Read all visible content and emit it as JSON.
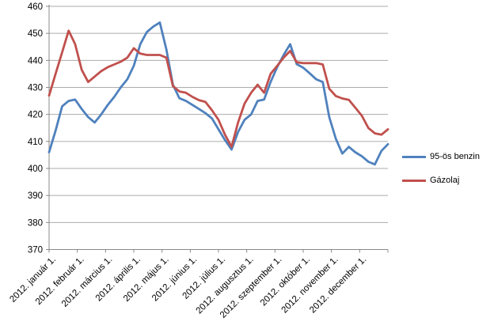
{
  "chart_data": {
    "type": "line",
    "title": "",
    "xlabel": "",
    "ylabel": "",
    "ylim": [
      370,
      460
    ],
    "y_tick_step": 10,
    "y_tick_labels": [
      "370",
      "380",
      "390",
      "400",
      "410",
      "420",
      "430",
      "440",
      "450",
      "460"
    ],
    "grid": "horizontal",
    "legend_position": "right",
    "x_axis_labels": [
      "2012. január 1.",
      "2012. február 1.",
      "2012. március 1.",
      "2012. április 1.",
      "2012. május 1.",
      "2012. június 1.",
      "2012. július 1.",
      "2012. augusztus 1.",
      "2012. szeptember 1.",
      "2012. október 1.",
      "2012. november 1.",
      "2012. december 1."
    ],
    "sampling": "weekly",
    "series": [
      {
        "name": "95-ös benzin",
        "color": "#4F81BD",
        "values": [
          406,
          414,
          423,
          425,
          425.5,
          422,
          419,
          417,
          420,
          423.5,
          426.5,
          430,
          433,
          438,
          446,
          450.5,
          452.5,
          454,
          444,
          431,
          426,
          425,
          423.5,
          422,
          420.5,
          418.5,
          414.5,
          410.5,
          407,
          413.5,
          418,
          420,
          425,
          425.5,
          432,
          437.5,
          442,
          446,
          438.6,
          437.3,
          435.2,
          433,
          432,
          419,
          411,
          405.5,
          408,
          406,
          404.5,
          402.5,
          401.5,
          406.5,
          409
        ]
      },
      {
        "name": "Gázolaj",
        "color": "#C0504D",
        "values": [
          427,
          435,
          443,
          451,
          446,
          436.5,
          432,
          434,
          436,
          437.5,
          438.5,
          439.5,
          441,
          444.5,
          442.5,
          442,
          442,
          442,
          441,
          430.5,
          428.5,
          428,
          426.5,
          425.3,
          424.6,
          421.5,
          418,
          412.5,
          408,
          417,
          424,
          428,
          431,
          428,
          435,
          438,
          441,
          443.5,
          439.3,
          439,
          439,
          439,
          438.5,
          429.5,
          426.8,
          425.9,
          425.4,
          422.5,
          419.5,
          415,
          413,
          412.5,
          414.5
        ]
      }
    ],
    "colors": {
      "gridline": "#ABABAB",
      "axis": "#898989",
      "tick_text": "#000000",
      "background": "#FFFFFF"
    }
  }
}
